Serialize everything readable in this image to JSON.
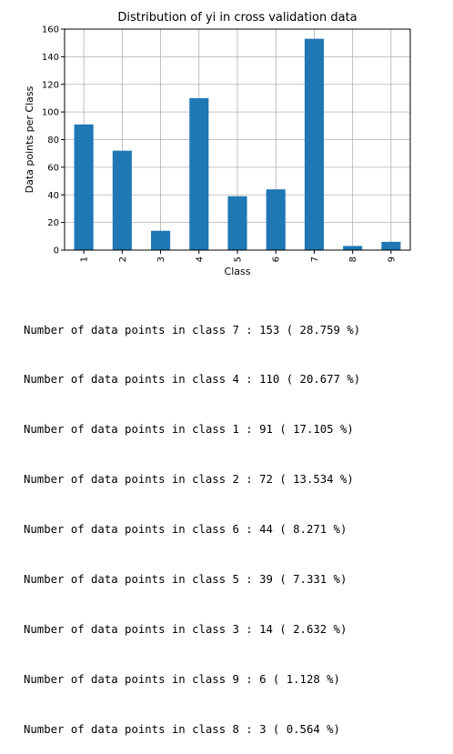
{
  "chart_data": {
    "type": "bar",
    "title": "Distribution of yi in cross validation data",
    "xlabel": "Class",
    "ylabel": "Data points per Class",
    "categories": [
      "1",
      "2",
      "3",
      "4",
      "5",
      "6",
      "7",
      "8",
      "9"
    ],
    "values": [
      91,
      72,
      14,
      110,
      39,
      44,
      153,
      3,
      6
    ],
    "ylim": [
      0,
      160
    ],
    "yticks": [
      0,
      20,
      40,
      60,
      80,
      100,
      120,
      140,
      160
    ],
    "grid": true,
    "bar_color": "#1f77b4"
  },
  "output_lines": [
    "Number of data points in class 7 : 153 ( 28.759 %)",
    "Number of data points in class 4 : 110 ( 20.677 %)",
    "Number of data points in class 1 : 91 ( 17.105 %)",
    "Number of data points in class 2 : 72 ( 13.534 %)",
    "Number of data points in class 6 : 44 ( 8.271 %)",
    "Number of data points in class 5 : 39 ( 7.331 %)",
    "Number of data points in class 3 : 14 ( 2.632 %)",
    "Number of data points in class 9 : 6 ( 1.128 %)",
    "Number of data points in class 8 : 3 ( 0.564 %)"
  ]
}
